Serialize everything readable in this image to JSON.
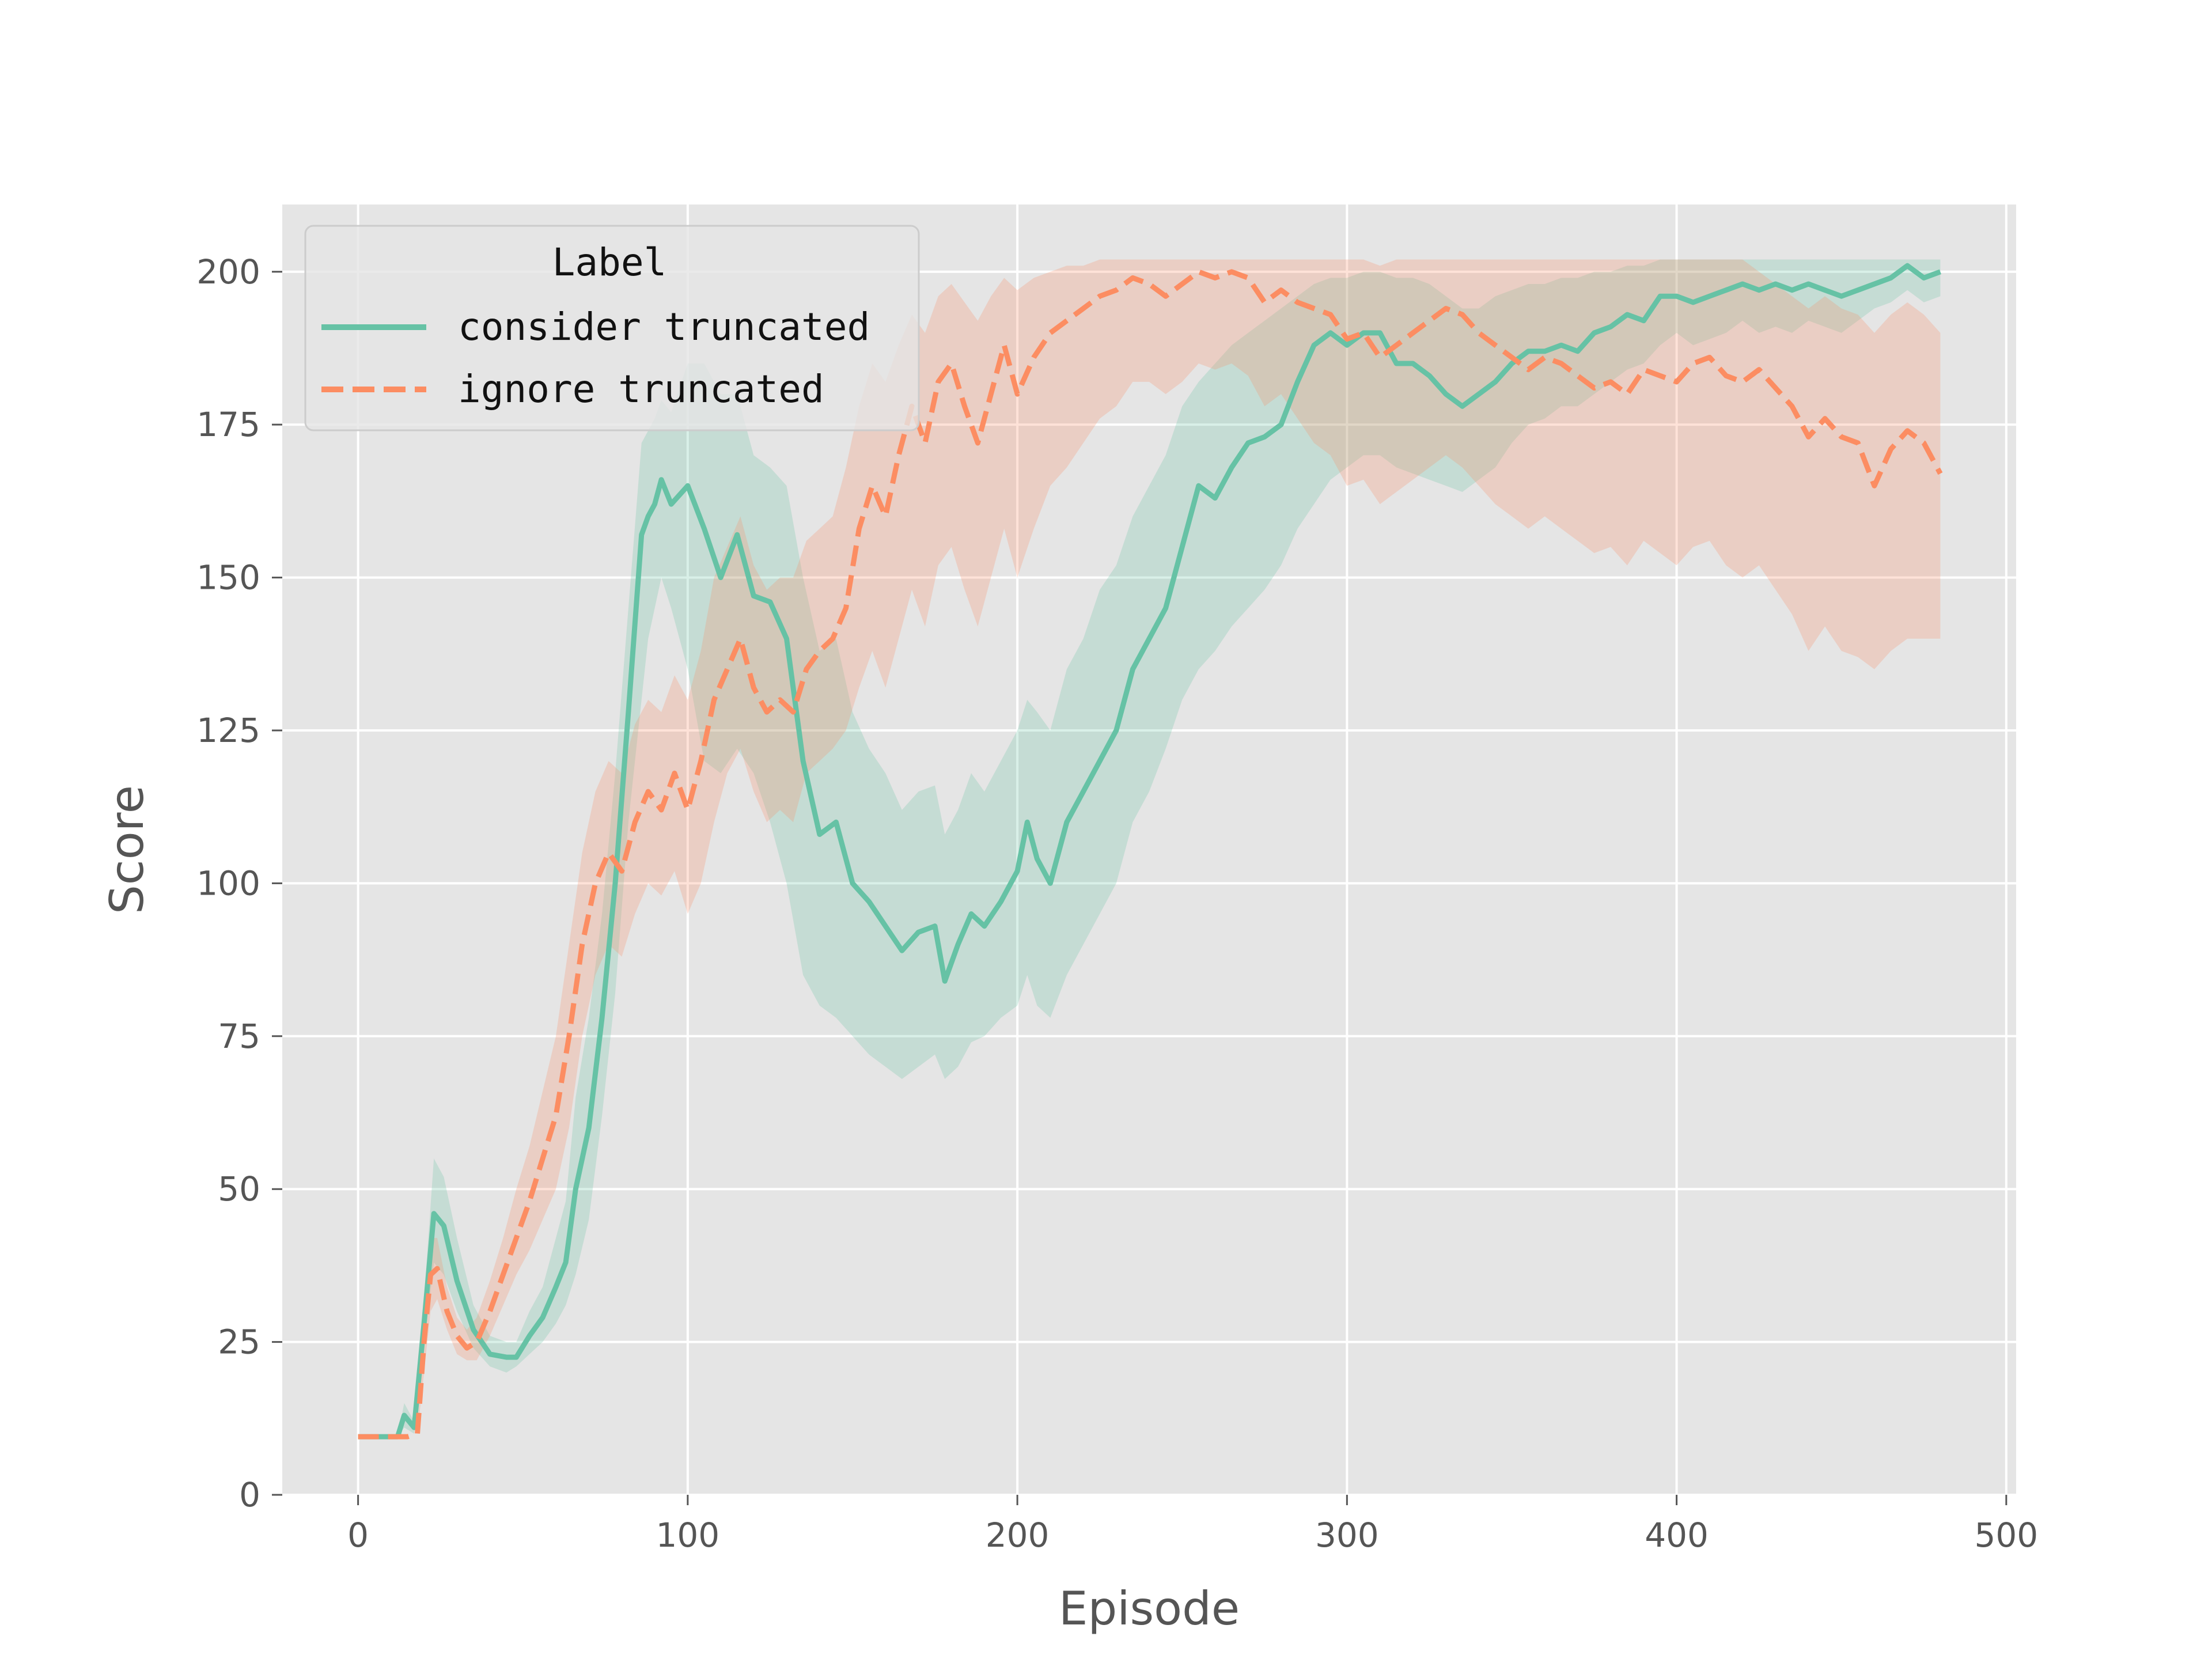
{
  "chart_data": {
    "type": "line",
    "xlabel": "Episode",
    "ylabel": "Score",
    "xlim": [
      -23,
      503
    ],
    "ylim": [
      0,
      211
    ],
    "xticks": [
      0,
      100,
      200,
      300,
      400,
      500
    ],
    "yticks": [
      0,
      25,
      50,
      75,
      100,
      125,
      150,
      175,
      200
    ],
    "grid": true,
    "legend": {
      "title": "Label",
      "placement": "top-left"
    },
    "colors": {
      "consider": "#66c2a5",
      "ignore": "#fc8d62",
      "background": "#e5e5e5",
      "grid": "#ffffff"
    },
    "series": [
      {
        "name": "consider truncated",
        "style": "solid",
        "x": [
          0,
          12,
          14,
          17,
          20,
          23,
          26,
          30,
          35,
          40,
          45,
          48,
          52,
          56,
          60,
          63,
          66,
          70,
          74,
          78,
          82,
          86,
          88,
          90,
          92,
          95,
          100,
          105,
          110,
          115,
          120,
          125,
          130,
          135,
          140,
          145,
          150,
          155,
          160,
          165,
          170,
          175,
          178,
          182,
          186,
          190,
          195,
          200,
          203,
          206,
          210,
          215,
          220,
          225,
          230,
          235,
          240,
          245,
          250,
          255,
          260,
          265,
          270,
          275,
          280,
          285,
          290,
          295,
          300,
          305,
          310,
          315,
          320,
          325,
          330,
          335,
          340,
          345,
          350,
          355,
          360,
          365,
          370,
          375,
          380,
          385,
          390,
          395,
          400,
          405,
          410,
          415,
          420,
          425,
          430,
          435,
          440,
          445,
          450,
          455,
          460,
          465,
          470,
          475,
          480
        ],
        "y": [
          9.5,
          9.5,
          13,
          11,
          28,
          46,
          44,
          35,
          27,
          23,
          22.5,
          22.5,
          26,
          29,
          34,
          38,
          50,
          60,
          78,
          100,
          128,
          157,
          160,
          162,
          166,
          162,
          165,
          158,
          150,
          157,
          147,
          146,
          140,
          120,
          108,
          110,
          100,
          97,
          93,
          89,
          92,
          93,
          84,
          90,
          95,
          93,
          97,
          102,
          110,
          104,
          100,
          110,
          115,
          120,
          125,
          135,
          140,
          145,
          155,
          165,
          163,
          168,
          172,
          173,
          175,
          182,
          188,
          190,
          188,
          190,
          190,
          185,
          185,
          183,
          180,
          178,
          180,
          182,
          185,
          187,
          187,
          188,
          187,
          190,
          191,
          193,
          192,
          196,
          196,
          195,
          196,
          197,
          198,
          197,
          198,
          197,
          198,
          197,
          196,
          197,
          198,
          199,
          201,
          199,
          200
        ],
        "lower": [
          9.5,
          9.5,
          11,
          10,
          24,
          38,
          36,
          30,
          24,
          21,
          20,
          21,
          23,
          25,
          28,
          31,
          36,
          45,
          62,
          82,
          110,
          130,
          140,
          145,
          150,
          145,
          135,
          120,
          118,
          122,
          118,
          110,
          100,
          85,
          80,
          78,
          75,
          72,
          70,
          68,
          70,
          72,
          68,
          70,
          74,
          75,
          78,
          80,
          85,
          80,
          78,
          85,
          90,
          95,
          100,
          110,
          115,
          122,
          130,
          135,
          138,
          142,
          145,
          148,
          152,
          158,
          162,
          166,
          168,
          170,
          170,
          168,
          167,
          166,
          165,
          164,
          166,
          168,
          172,
          175,
          176,
          178,
          178,
          180,
          182,
          184,
          185,
          188,
          190,
          188,
          189,
          190,
          192,
          190,
          191,
          190,
          192,
          191,
          190,
          192,
          194,
          195,
          197,
          195,
          196
        ],
        "upper": [
          9.5,
          9.5,
          15,
          12,
          32,
          55,
          52,
          42,
          31,
          26,
          25,
          25,
          30,
          34,
          42,
          48,
          65,
          78,
          95,
          118,
          145,
          172,
          174,
          176,
          179,
          177,
          185,
          185,
          180,
          180,
          170,
          168,
          165,
          150,
          138,
          140,
          128,
          122,
          118,
          112,
          115,
          116,
          108,
          112,
          118,
          115,
          120,
          125,
          130,
          128,
          125,
          135,
          140,
          148,
          152,
          160,
          165,
          170,
          178,
          182,
          185,
          188,
          190,
          192,
          194,
          196,
          198,
          199,
          199,
          200,
          200,
          199,
          199,
          198,
          196,
          194,
          194,
          196,
          197,
          198,
          198,
          199,
          199,
          200,
          200,
          201,
          201,
          202,
          202,
          202,
          202,
          202,
          202,
          202,
          202,
          202,
          202,
          202,
          202,
          202,
          202,
          202,
          202,
          202,
          202
        ]
      },
      {
        "name": "ignore truncated",
        "style": "dashed",
        "x": [
          0,
          15,
          18,
          20,
          22,
          24,
          27,
          30,
          33,
          36,
          40,
          44,
          48,
          52,
          56,
          60,
          64,
          68,
          72,
          76,
          80,
          84,
          88,
          92,
          96,
          100,
          104,
          108,
          112,
          116,
          120,
          124,
          128,
          132,
          136,
          140,
          144,
          148,
          152,
          156,
          160,
          164,
          168,
          172,
          176,
          180,
          184,
          188,
          192,
          196,
          200,
          205,
          210,
          215,
          220,
          225,
          230,
          235,
          240,
          245,
          250,
          255,
          260,
          265,
          270,
          275,
          280,
          285,
          290,
          295,
          300,
          305,
          310,
          315,
          320,
          325,
          330,
          335,
          340,
          345,
          350,
          355,
          360,
          365,
          370,
          375,
          380,
          385,
          390,
          395,
          400,
          405,
          410,
          415,
          420,
          425,
          430,
          435,
          440,
          445,
          450,
          455,
          460,
          465,
          470,
          475,
          480
        ],
        "y": [
          9.5,
          9.5,
          10,
          25,
          36,
          37,
          30,
          26,
          24,
          25,
          30,
          36,
          42,
          48,
          55,
          62,
          75,
          90,
          100,
          105,
          102,
          110,
          115,
          112,
          118,
          112,
          120,
          130,
          135,
          140,
          132,
          128,
          130,
          128,
          135,
          138,
          140,
          145,
          158,
          165,
          160,
          170,
          178,
          172,
          182,
          185,
          178,
          172,
          180,
          188,
          180,
          186,
          190,
          192,
          194,
          196,
          197,
          199,
          198,
          196,
          198,
          200,
          199,
          200,
          199,
          195,
          197,
          195,
          194,
          193,
          189,
          190,
          186,
          188,
          190,
          192,
          194,
          193,
          190,
          188,
          186,
          184,
          186,
          185,
          183,
          181,
          182,
          180,
          184,
          183,
          182,
          185,
          186,
          183,
          182,
          184,
          181,
          178,
          173,
          176,
          173,
          172,
          165,
          171,
          174,
          172,
          167
        ],
        "lower": [
          9.5,
          9.5,
          10,
          20,
          30,
          32,
          27,
          23,
          22,
          22,
          26,
          31,
          36,
          40,
          45,
          50,
          60,
          75,
          85,
          90,
          88,
          95,
          100,
          98,
          102,
          95,
          100,
          110,
          118,
          122,
          115,
          110,
          112,
          110,
          118,
          120,
          122,
          125,
          132,
          138,
          132,
          140,
          148,
          142,
          152,
          155,
          148,
          142,
          150,
          158,
          150,
          158,
          165,
          168,
          172,
          176,
          178,
          182,
          182,
          180,
          182,
          185,
          184,
          185,
          183,
          178,
          180,
          176,
          172,
          170,
          165,
          166,
          162,
          164,
          166,
          168,
          170,
          168,
          165,
          162,
          160,
          158,
          160,
          158,
          156,
          154,
          155,
          152,
          156,
          154,
          152,
          155,
          156,
          152,
          150,
          152,
          148,
          144,
          138,
          142,
          138,
          137,
          135,
          138,
          140,
          140,
          140
        ],
        "upper": [
          9.5,
          9.5,
          10,
          30,
          42,
          42,
          34,
          29,
          27,
          29,
          35,
          42,
          50,
          57,
          66,
          75,
          90,
          105,
          115,
          120,
          118,
          126,
          130,
          128,
          134,
          130,
          138,
          150,
          155,
          160,
          152,
          148,
          150,
          150,
          156,
          158,
          160,
          168,
          178,
          185,
          182,
          188,
          193,
          190,
          196,
          198,
          195,
          192,
          196,
          199,
          197,
          199,
          200,
          201,
          201,
          202,
          202,
          202,
          202,
          202,
          202,
          202,
          202,
          202,
          202,
          202,
          202,
          202,
          202,
          202,
          202,
          202,
          201,
          202,
          202,
          202,
          202,
          202,
          202,
          202,
          202,
          202,
          202,
          202,
          202,
          202,
          202,
          202,
          202,
          202,
          202,
          202,
          202,
          202,
          202,
          200,
          198,
          196,
          194,
          196,
          194,
          193,
          190,
          193,
          195,
          193,
          190
        ]
      }
    ]
  }
}
